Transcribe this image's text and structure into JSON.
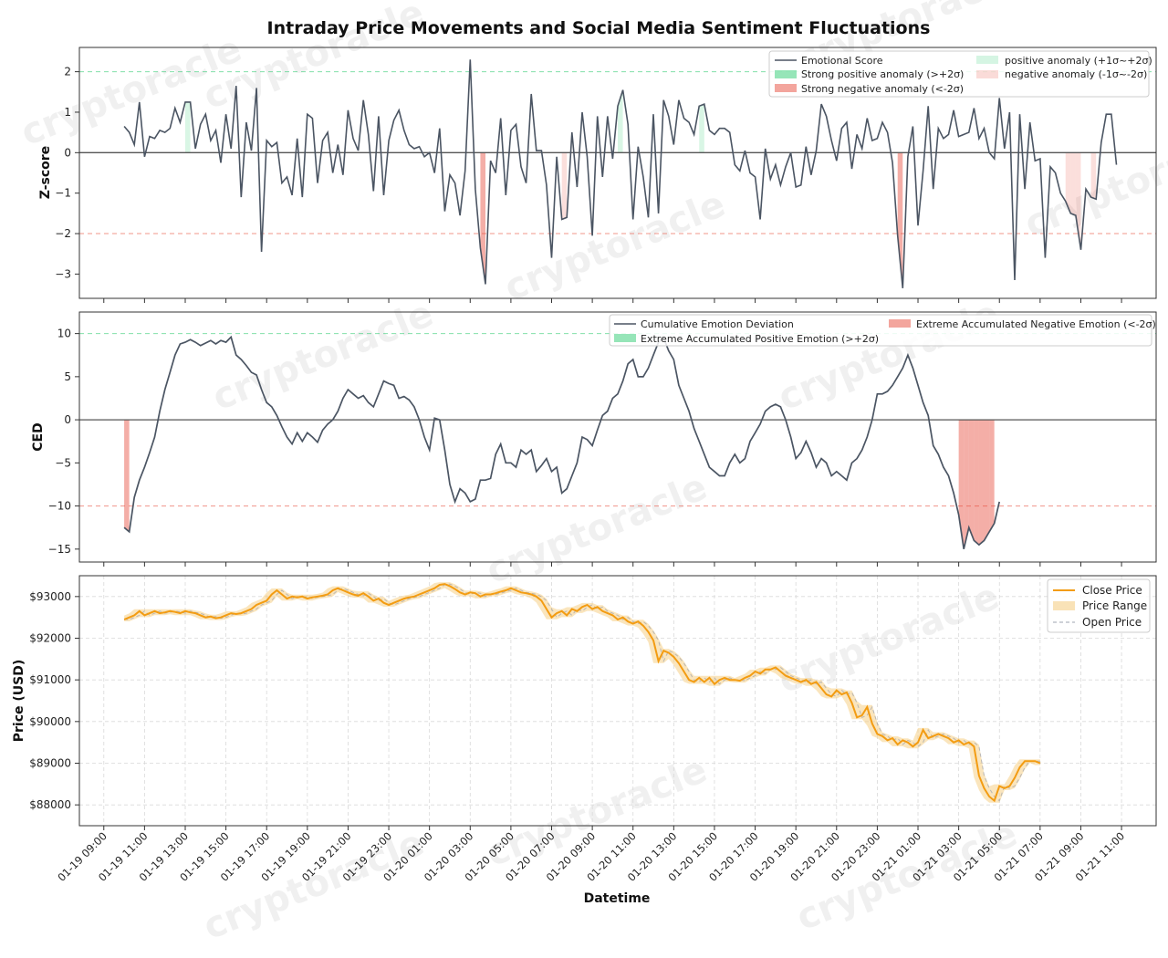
{
  "title": "Intraday Price Movements and Social Media Sentiment Fluctuations",
  "watermark": "cryptoracle",
  "colors": {
    "line": "#4b5563",
    "pos": "#2ecc71",
    "neg": "#e74c3c",
    "price": "#f39c12",
    "price_fill": "#f5cf87",
    "open": "#9ca3af",
    "grid": "#d9d9d9",
    "zero": "#555555"
  },
  "chart_data": [
    {
      "id": "zscore",
      "type": "line",
      "ylabel": "Z-score",
      "ylim": [
        -3.6,
        2.6
      ],
      "yticks": [
        -3,
        -2,
        -1,
        0,
        1,
        2
      ],
      "x_start": "01-19 10:00",
      "x_step_hours": 0.25,
      "thresholds": [
        2,
        -2
      ],
      "legend": [
        "Emotional Score",
        "Strong positive anomaly (>+2σ)",
        "Strong negative anomaly (<-2σ)",
        "positive anomaly (+1σ~+2σ)",
        "negative anomaly (-1σ~-2σ)"
      ],
      "series": [
        {
          "name": "Emotional Score",
          "values": [
            0.65,
            0.5,
            0.2,
            1.25,
            -0.1,
            0.4,
            0.35,
            0.55,
            0.5,
            0.6,
            1.1,
            0.75,
            1.25,
            1.25,
            0.1,
            0.7,
            0.95,
            0.3,
            0.55,
            -0.25,
            0.95,
            0.1,
            1.65,
            -1.1,
            0.75,
            0.05,
            1.6,
            -2.45,
            0.3,
            0.15,
            0.25,
            -0.75,
            -0.6,
            -1.05,
            0.35,
            -1.1,
            0.95,
            0.85,
            -0.75,
            0.3,
            0.5,
            -0.5,
            0.2,
            -0.55,
            1.05,
            0.35,
            0.05,
            1.3,
            0.45,
            -0.95,
            0.9,
            -1.05,
            0.3,
            0.8,
            1.05,
            0.55,
            0.2,
            0.1,
            0.15,
            -0.1,
            0.0,
            -0.5,
            0.6,
            -1.45,
            -0.55,
            -0.75,
            -1.55,
            -0.45,
            2.3,
            -0.9,
            -2.35,
            -3.25,
            -0.2,
            -0.5,
            0.85,
            -1.05,
            0.55,
            0.7,
            -0.35,
            -0.75,
            1.45,
            0.05,
            0.05,
            -0.8,
            -2.6,
            -0.1,
            -1.65,
            -1.6,
            0.5,
            -0.85,
            1.0,
            -0.1,
            -2.05,
            0.9,
            -0.6,
            0.9,
            -0.15,
            1.15,
            1.55,
            0.7,
            -1.65,
            0.15,
            -0.6,
            -1.6,
            0.95,
            -1.5,
            1.3,
            0.9,
            0.2,
            1.3,
            0.85,
            0.75,
            0.45,
            1.15,
            1.2,
            0.55,
            0.45,
            0.6,
            0.6,
            0.5,
            -0.3,
            -0.45,
            0.05,
            -0.5,
            -0.6,
            -1.65,
            0.1,
            -0.65,
            -0.3,
            -0.8,
            -0.35,
            0.0,
            -0.85,
            -0.8,
            0.15,
            -0.55,
            0.05,
            1.2,
            0.9,
            0.3,
            -0.2,
            0.6,
            0.75,
            -0.4,
            0.45,
            0.1,
            0.85,
            0.3,
            0.35,
            0.75,
            0.5,
            -0.25,
            -2.05,
            -3.35,
            -0.1,
            0.65,
            -1.8,
            -0.45,
            1.15,
            -0.9,
            0.6,
            0.35,
            0.45,
            1.05,
            0.4,
            0.45,
            0.5,
            1.1,
            0.35,
            0.6,
            0.0,
            -0.15,
            1.35,
            0.1,
            1.0,
            -3.15,
            0.95,
            -0.9,
            0.75,
            -0.2,
            -0.15,
            -2.6,
            -0.35,
            -0.5,
            -1.0,
            -1.2,
            -1.5,
            -1.55,
            -2.4,
            -0.9,
            -1.1,
            -1.15,
            0.25,
            0.95,
            0.95,
            -0.3
          ]
        }
      ]
    },
    {
      "id": "ced",
      "type": "line",
      "ylabel": "CED",
      "ylim": [
        -16.5,
        12.5
      ],
      "yticks": [
        -15,
        -10,
        -5,
        0,
        5,
        10
      ],
      "x_start": "01-19 10:00",
      "x_step_hours": 0.25,
      "thresholds": [
        10,
        -10
      ],
      "legend": [
        "Cumulative Emotion Deviation",
        "Extreme Accumulated Positive Emotion (>+2σ)",
        "Extreme Accumulated Negative Emotion (<-2σ)"
      ],
      "series": [
        {
          "name": "Cumulative Emotion Deviation",
          "values": [
            -12.5,
            -13.0,
            -9.0,
            -7.0,
            -5.5,
            -3.8,
            -2.0,
            1.0,
            3.5,
            5.5,
            7.5,
            8.8,
            9.0,
            9.3,
            9.0,
            8.6,
            8.9,
            9.2,
            8.8,
            9.2,
            9.0,
            9.6,
            7.5,
            7.0,
            6.3,
            5.5,
            5.2,
            3.5,
            2.0,
            1.5,
            0.5,
            -0.8,
            -2.0,
            -2.8,
            -1.5,
            -2.5,
            -1.5,
            -2.0,
            -2.6,
            -1.2,
            -0.5,
            0.0,
            1.0,
            2.5,
            3.5,
            3.0,
            2.5,
            2.8,
            2.0,
            1.5,
            3.0,
            4.5,
            4.2,
            4.0,
            2.5,
            2.7,
            2.3,
            1.5,
            0.0,
            -2.0,
            -3.5,
            0.2,
            0.0,
            -3.5,
            -7.5,
            -9.5,
            -8.0,
            -8.5,
            -9.5,
            -9.2,
            -7.0,
            -7.0,
            -6.8,
            -4.0,
            -2.8,
            -5.0,
            -5.0,
            -5.5,
            -3.5,
            -4.0,
            -3.5,
            -6.0,
            -5.3,
            -4.5,
            -6.0,
            -5.5,
            -8.5,
            -8.0,
            -6.5,
            -5.0,
            -2.0,
            -2.3,
            -3.0,
            -1.2,
            0.5,
            1.0,
            2.5,
            3.0,
            4.5,
            6.5,
            7.0,
            5.0,
            5.0,
            6.0,
            7.5,
            9.0,
            9.5,
            8.0,
            7.0,
            4.0,
            2.5,
            1.0,
            -1.0,
            -2.5,
            -4.0,
            -5.5,
            -6.0,
            -6.5,
            -6.5,
            -5.0,
            -4.0,
            -5.0,
            -4.5,
            -2.5,
            -1.5,
            -0.5,
            1.0,
            1.5,
            1.8,
            1.5,
            0.0,
            -2.0,
            -4.5,
            -3.8,
            -2.5,
            -3.8,
            -5.5,
            -4.5,
            -5.0,
            -6.5,
            -6.0,
            -6.5,
            -7.0,
            -5.0,
            -4.5,
            -3.5,
            -2.0,
            0.0,
            3.0,
            3.0,
            3.3,
            4.0,
            5.0,
            6.0,
            7.5,
            6.0,
            4.0,
            2.0,
            0.5,
            -3.0,
            -4.0,
            -5.5,
            -6.5,
            -8.5,
            -11.0,
            -15.0,
            -12.5,
            -14.0,
            -14.5,
            -14.0,
            -13.0,
            -12.0,
            -9.5
          ]
        }
      ]
    },
    {
      "id": "price",
      "type": "line",
      "ylabel": "Price (USD)",
      "xlabel": "Datetime",
      "ylim": [
        87500,
        93500
      ],
      "yticks": [
        88000,
        89000,
        90000,
        91000,
        92000,
        93000
      ],
      "ytick_labels": [
        "$88000",
        "$89000",
        "$90000",
        "$91000",
        "$92000",
        "$93000"
      ],
      "x_start": "01-19 10:00",
      "x_step_hours": 0.25,
      "legend": [
        "Close Price",
        "Price Range",
        "Open Price"
      ],
      "series": [
        {
          "name": "Close Price",
          "values": [
            92450,
            92500,
            92550,
            92650,
            92550,
            92600,
            92650,
            92600,
            92620,
            92650,
            92630,
            92600,
            92650,
            92620,
            92600,
            92550,
            92500,
            92520,
            92480,
            92500,
            92550,
            92600,
            92580,
            92600,
            92650,
            92700,
            92800,
            92850,
            92900,
            93050,
            93150,
            93050,
            92950,
            93000,
            92980,
            93000,
            92950,
            92980,
            93000,
            93020,
            93050,
            93150,
            93200,
            93150,
            93100,
            93050,
            93020,
            93080,
            93000,
            92900,
            92950,
            92850,
            92800,
            92850,
            92900,
            92950,
            92980,
            93000,
            93050,
            93100,
            93150,
            93200,
            93280,
            93300,
            93250,
            93180,
            93100,
            93050,
            93100,
            93080,
            93000,
            93050,
            93050,
            93080,
            93120,
            93150,
            93200,
            93150,
            93100,
            93080,
            93050,
            93000,
            92900,
            92700,
            92500,
            92600,
            92650,
            92550,
            92700,
            92650,
            92750,
            92800,
            92700,
            92750,
            92650,
            92600,
            92550,
            92450,
            92500,
            92400,
            92350,
            92400,
            92300,
            92150,
            91950,
            91450,
            91700,
            91650,
            91550,
            91400,
            91200,
            91000,
            90950,
            91050,
            90950,
            91050,
            90900,
            91000,
            91050,
            91000,
            91000,
            90980,
            91050,
            91100,
            91200,
            91150,
            91250,
            91250,
            91300,
            91200,
            91100,
            91050,
            91000,
            90950,
            91000,
            90900,
            90950,
            90800,
            90650,
            90600,
            90750,
            90650,
            90700,
            90450,
            90100,
            90150,
            90350,
            89950,
            89700,
            89650,
            89550,
            89600,
            89450,
            89550,
            89500,
            89400,
            89500,
            89800,
            89600,
            89650,
            89700,
            89650,
            89600,
            89500,
            89550,
            89450,
            89500,
            89400,
            88700,
            88400,
            88200,
            88100,
            88450,
            88400,
            88450,
            88650,
            88900,
            89050,
            89050,
            89050,
            89000
          ]
        }
      ]
    }
  ],
  "x_axis": {
    "tick_labels": [
      "01-19 09:00",
      "01-19 11:00",
      "01-19 13:00",
      "01-19 15:00",
      "01-19 17:00",
      "01-19 19:00",
      "01-19 21:00",
      "01-19 23:00",
      "01-20 01:00",
      "01-20 03:00",
      "01-20 05:00",
      "01-20 07:00",
      "01-20 09:00",
      "01-20 11:00",
      "01-20 13:00",
      "01-20 15:00",
      "01-20 17:00",
      "01-20 19:00",
      "01-20 21:00",
      "01-20 23:00",
      "01-21 01:00",
      "01-21 03:00",
      "01-21 05:00",
      "01-21 07:00",
      "01-21 09:00",
      "01-21 11:00"
    ],
    "tick_hours": [
      -1,
      1,
      3,
      5,
      7,
      9,
      11,
      13,
      15,
      17,
      19,
      21,
      23,
      25,
      27,
      29,
      31,
      33,
      35,
      37,
      39,
      41,
      43,
      45,
      47,
      49
    ],
    "range_hours": [
      -2.2,
      50.7
    ]
  }
}
